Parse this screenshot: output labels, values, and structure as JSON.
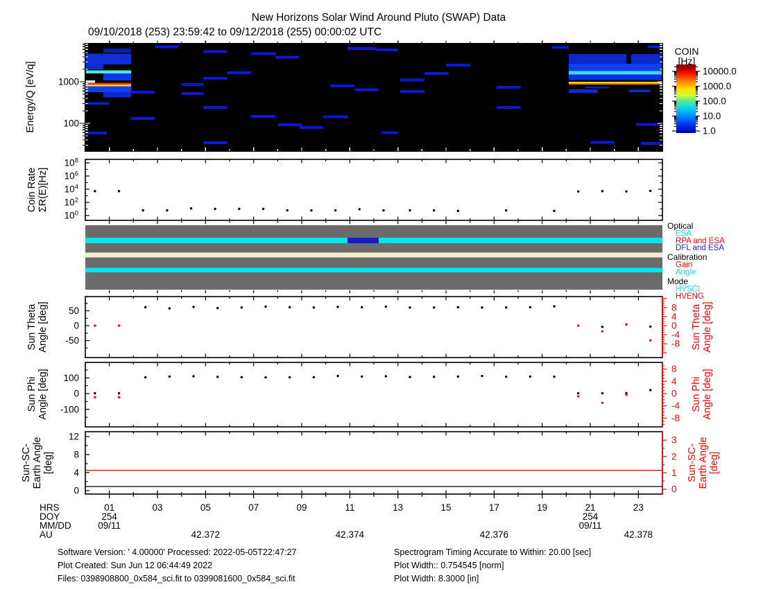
{
  "title": "New Horizons Solar Wind Around Pluto (SWAP) Data",
  "subtitle": "09/10/2018 (253) 23:59:42 to 09/12/2018 (255) 00:00:02 UTC",
  "labels": {
    "energy_ylabel": "Energy/Q [eV/q]",
    "coin_ylabel": [
      "Coin Rate",
      "ΣR(E)[Hz]"
    ],
    "theta_ylabel": [
      "Sun Theta",
      "Angle [deg]"
    ],
    "phi_ylabel": [
      "Sun Phi",
      "Angle [deg]"
    ],
    "earth_ylabel": [
      "Sun-SC-",
      "Earth Angle",
      "[deg]"
    ],
    "colorbar_title": [
      "COIN",
      "[Hz]"
    ]
  },
  "colors": {
    "axis_black": "#000000",
    "axis_red": "#ff0000",
    "status_gray": "#6b6b6b",
    "status_cyan": "#00e5ee",
    "status_cream": "#f2efc9",
    "status_blue": "#1818cc",
    "spectro_background": "#000000",
    "segment_blue": "#0a16d8"
  },
  "chart_data": [
    {
      "id": "energy_spectrogram",
      "type": "heatmap",
      "ylabel": "Energy/Q [eV/q]",
      "x_range_hours": [
        0,
        24
      ],
      "y_range_evq": [
        21,
        8300
      ],
      "y_scale": "log",
      "y_ticks_labeled": [
        1000,
        100
      ],
      "background": "#000000",
      "colorbar": {
        "title": "COIN",
        "units": "[Hz]",
        "scale": "log",
        "tick_values": [
          10000,
          1000,
          100,
          10,
          1
        ],
        "tick_labels": [
          "10000.0",
          "1000.0",
          "100.0",
          "10.0",
          "1.0"
        ],
        "gradient_stops": [
          [
            0,
            "#7d0000"
          ],
          [
            0.08,
            "#cc0000"
          ],
          [
            0.17,
            "#ff3300"
          ],
          [
            0.27,
            "#ff9900"
          ],
          [
            0.36,
            "#ffe000"
          ],
          [
            0.45,
            "#ccff33"
          ],
          [
            0.52,
            "#66ee88"
          ],
          [
            0.6,
            "#22ddcc"
          ],
          [
            0.68,
            "#00bbff"
          ],
          [
            0.78,
            "#0077ff"
          ],
          [
            0.88,
            "#0033ee"
          ],
          [
            1,
            "#0000aa"
          ]
        ]
      },
      "burst_bands": [
        [
          0.0,
          1.9,
          2600,
          4700,
          "#0f2fd4"
        ],
        [
          0.75,
          1.9,
          5000,
          6300,
          "#0a1fa8"
        ],
        [
          0.0,
          0.75,
          2000,
          2600,
          "#0c2cd8"
        ],
        [
          0.0,
          1.9,
          1600,
          1900,
          "#49e8e0"
        ],
        [
          0.75,
          1.9,
          1080,
          1600,
          "#0d36e8"
        ],
        [
          0.0,
          0.4,
          950,
          1080,
          "#cfeeee"
        ],
        [
          0.0,
          1.9,
          880,
          950,
          "#e03010"
        ],
        [
          0.0,
          1.9,
          830,
          880,
          "#ff9100"
        ],
        [
          0.0,
          1.9,
          780,
          830,
          "#ffe93c"
        ],
        [
          0.0,
          1.9,
          560,
          780,
          "#1240f0"
        ],
        [
          0.75,
          1.9,
          420,
          560,
          "#0a2ad0"
        ],
        [
          0.0,
          1.0,
          280,
          320,
          "#0a22cc"
        ],
        [
          20.1,
          24,
          1500,
          1800,
          "#40d8ec"
        ],
        [
          20.1,
          24,
          1800,
          2700,
          "#1040ee"
        ],
        [
          20.1,
          22.5,
          2700,
          4600,
          "#0a28cc"
        ],
        [
          22.7,
          24,
          2700,
          4600,
          "#0a28cc"
        ],
        [
          20.1,
          24,
          1100,
          1500,
          "#0a31e0"
        ],
        [
          20.1,
          24,
          930,
          1000,
          "#ffd800"
        ],
        [
          20.1,
          24,
          860,
          930,
          "#ff7d00"
        ],
        [
          20.1,
          21.3,
          540,
          650,
          "#0a2cd8"
        ],
        [
          22.6,
          23.5,
          560,
          640,
          "#0a2cd8"
        ],
        [
          20.8,
          21.8,
          700,
          760,
          "#0a20b0"
        ]
      ],
      "segments": [
        [
          2.9,
          3.9,
          7000
        ],
        [
          4.9,
          5.9,
          5300
        ],
        [
          6.9,
          7.9,
          4700
        ],
        [
          7.9,
          8.9,
          3900
        ],
        [
          10.9,
          12.1,
          6300
        ],
        [
          12.1,
          13.0,
          5800
        ],
        [
          19.4,
          20.1,
          6700
        ],
        [
          5.9,
          6.9,
          1650
        ],
        [
          4.9,
          5.9,
          1200
        ],
        [
          4.0,
          4.9,
          860
        ],
        [
          4.0,
          4.9,
          520
        ],
        [
          1.9,
          2.9,
          560
        ],
        [
          13.1,
          14.1,
          1100
        ],
        [
          13.1,
          14.1,
          580
        ],
        [
          14.1,
          15.1,
          1600
        ],
        [
          15.0,
          16.0,
          2500
        ],
        [
          17.1,
          18.1,
          730
        ],
        [
          17.1,
          18.1,
          240
        ],
        [
          4.9,
          5.9,
          240
        ],
        [
          6.9,
          7.9,
          147
        ],
        [
          8.0,
          9.0,
          92
        ],
        [
          8.9,
          9.9,
          80
        ],
        [
          12.3,
          13.0,
          60
        ],
        [
          4.9,
          5.9,
          34
        ],
        [
          1.9,
          2.9,
          130
        ],
        [
          9.9,
          10.9,
          145
        ],
        [
          10.2,
          11.2,
          800
        ],
        [
          11.2,
          12.2,
          640
        ],
        [
          22.9,
          23.9,
          95
        ],
        [
          21.0,
          22.0,
          35
        ],
        [
          23.1,
          24,
          33
        ],
        [
          23.4,
          24,
          7000
        ],
        [
          0,
          0.9,
          58
        ]
      ]
    },
    {
      "id": "coin_rate",
      "type": "scatter",
      "ylabel": "Coin Rate ΣR(E)[Hz]",
      "y_scale": "log",
      "y_tick_exponents": [
        8,
        6,
        4,
        2,
        0
      ],
      "points": [
        [
          0.4,
          5000
        ],
        [
          1.4,
          5000
        ],
        [
          2.4,
          6
        ],
        [
          3.4,
          6
        ],
        [
          4.4,
          12
        ],
        [
          5.4,
          10
        ],
        [
          6.4,
          10
        ],
        [
          7.4,
          10
        ],
        [
          8.4,
          6
        ],
        [
          9.4,
          6
        ],
        [
          10.4,
          6
        ],
        [
          11.4,
          9
        ],
        [
          12.4,
          6
        ],
        [
          13.5,
          6
        ],
        [
          14.5,
          6
        ],
        [
          15.5,
          5
        ],
        [
          17.5,
          6
        ],
        [
          19.5,
          5
        ],
        [
          20.5,
          4500
        ],
        [
          21.5,
          5000
        ],
        [
          22.5,
          4500
        ],
        [
          23.5,
          5500
        ]
      ]
    },
    {
      "id": "instrument_status",
      "type": "status-bars",
      "background": "#6b6b6b",
      "stripes": [
        {
          "y0": 0.1935,
          "y1": 0.2796,
          "color": "#00e5ee"
        },
        {
          "y0": 0.4247,
          "y1": 0.5,
          "color": "#f2efc9"
        },
        {
          "y0": 0.6613,
          "y1": 0.7312,
          "color": "#00e5ee"
        }
      ],
      "overlays": [
        {
          "stripe": 0,
          "x0": 10.9,
          "x1": 12.2,
          "color": "#1818cc"
        }
      ]
    },
    {
      "id": "sun_theta",
      "type": "scatter",
      "ylabel": "Sun Theta Angle [deg]",
      "right_ylabel": "Sun Theta Angle [deg]",
      "left_ticks": [
        50,
        0,
        -50
      ],
      "right_ticks": [
        8,
        4,
        0,
        -4,
        -8
      ],
      "black_points": [
        [
          2.5,
          62
        ],
        [
          3.5,
          58
        ],
        [
          4.5,
          63
        ],
        [
          5.5,
          59
        ],
        [
          6.5,
          61
        ],
        [
          7.5,
          64
        ],
        [
          8.5,
          62
        ],
        [
          9.5,
          61
        ],
        [
          10.5,
          63
        ],
        [
          11.5,
          62
        ],
        [
          12.5,
          64
        ],
        [
          13.5,
          61
        ],
        [
          14.5,
          61
        ],
        [
          15.5,
          62
        ],
        [
          16.5,
          61
        ],
        [
          17.5,
          61
        ],
        [
          18.5,
          62
        ],
        [
          19.5,
          65
        ],
        [
          21.5,
          -4
        ],
        [
          22.5,
          4
        ],
        [
          23.5,
          -3
        ]
      ],
      "red_points_right_axis": [
        [
          0.4,
          0
        ],
        [
          1.4,
          0
        ],
        [
          20.5,
          0
        ],
        [
          21.5,
          -2.5
        ],
        [
          22.5,
          0.6
        ],
        [
          23.5,
          -6.5
        ]
      ]
    },
    {
      "id": "sun_phi",
      "type": "scatter",
      "ylabel": "Sun Phi Angle [deg]",
      "right_ylabel": "Sun Phi Angle [deg]",
      "left_ticks": [
        100,
        0,
        -100
      ],
      "right_ticks": [
        8,
        4,
        0,
        -4,
        -8
      ],
      "black_points": [
        [
          0.4,
          2
        ],
        [
          1.4,
          2
        ],
        [
          2.5,
          103
        ],
        [
          3.5,
          108
        ],
        [
          4.5,
          110
        ],
        [
          5.5,
          106
        ],
        [
          6.5,
          104
        ],
        [
          7.5,
          103
        ],
        [
          8.5,
          103
        ],
        [
          9.5,
          104
        ],
        [
          10.5,
          112
        ],
        [
          11.5,
          108
        ],
        [
          12.5,
          110
        ],
        [
          13.5,
          105
        ],
        [
          14.5,
          106
        ],
        [
          15.5,
          108
        ],
        [
          16.5,
          112
        ],
        [
          17.5,
          107
        ],
        [
          18.5,
          108
        ],
        [
          19.5,
          107
        ],
        [
          20.5,
          2
        ],
        [
          21.5,
          2
        ],
        [
          22.5,
          3
        ],
        [
          23.5,
          22
        ]
      ],
      "red_points_right_axis": [
        [
          0.4,
          -1.2
        ],
        [
          1.4,
          -1.2
        ],
        [
          20.5,
          -0.9
        ],
        [
          21.5,
          -3
        ],
        [
          22.5,
          -0.4
        ]
      ]
    },
    {
      "id": "sun_sc_earth",
      "type": "line",
      "ylabel": "Sun-SC-Earth Angle [deg]",
      "right_ylabel": "Sun-SC-Earth Angle [deg]",
      "left_ticks": [
        12,
        8,
        4,
        0
      ],
      "right_ticks": [
        3,
        2,
        1,
        0
      ],
      "red_line_value_right_axis": 1.15,
      "black_line_value_left_axis": 0.9
    }
  ],
  "time_axis": {
    "rows": [
      {
        "label": "HRS",
        "ticks": [
          {
            "hour": 1,
            "text": "01"
          },
          {
            "hour": 3,
            "text": "03"
          },
          {
            "hour": 5,
            "text": "05"
          },
          {
            "hour": 7,
            "text": "07"
          },
          {
            "hour": 9,
            "text": "09"
          },
          {
            "hour": 11,
            "text": "11"
          },
          {
            "hour": 13,
            "text": "13"
          },
          {
            "hour": 15,
            "text": "15"
          },
          {
            "hour": 17,
            "text": "17"
          },
          {
            "hour": 19,
            "text": "19"
          },
          {
            "hour": 21,
            "text": "21"
          },
          {
            "hour": 23,
            "text": "23"
          }
        ]
      },
      {
        "label": "DOY",
        "ticks": [
          {
            "hour": 1,
            "text": "254"
          },
          {
            "hour": 21,
            "text": "254"
          }
        ]
      },
      {
        "label": "MM/DD",
        "ticks": [
          {
            "hour": 1,
            "text": "09/11"
          },
          {
            "hour": 21,
            "text": "09/11"
          }
        ]
      },
      {
        "label": "AU",
        "ticks": [
          {
            "hour": 5,
            "text": "42.372"
          },
          {
            "hour": 11,
            "text": "42.374"
          },
          {
            "hour": 17,
            "text": "42.376"
          },
          {
            "hour": 23,
            "text": "42.378"
          }
        ]
      }
    ]
  },
  "status_legend": {
    "sections": [
      {
        "label": "Optical",
        "color": "#000000",
        "entries": [
          {
            "label": "ESA",
            "color": "#00e5ee"
          },
          {
            "label": "RPA and ESA",
            "color": "#ff0000"
          },
          {
            "label": "DFL and ESA",
            "color": "#2222ee"
          }
        ]
      },
      {
        "label": "Calibration",
        "color": "#000000",
        "entries": [
          {
            "label": "Gain",
            "color": "#ff0000"
          },
          {
            "label": "Angle",
            "color": "#00e5ee"
          }
        ]
      },
      {
        "label": "Mode",
        "color": "#000000",
        "entries": [
          {
            "label": "HVSCI",
            "color": "#00e5ee"
          },
          {
            "label": "HVENG",
            "color": "#ff0000"
          }
        ]
      }
    ]
  },
  "footer": {
    "left_lines": [
      "Software Version:  ' 4.00000'  Processed: 2022-05-05T22:47:27",
      "Plot Created: Sun Jun 12 06:44:49 2022",
      "Files: 0398908800_0x584_sci.fit to 0399081600_0x584_sci.fit"
    ],
    "right_lines": [
      "Spectrogram Timing Accurate to Within: 20.00 [sec]",
      "Plot Width:: 0.754545 [norm]",
      "Plot Width: 8.3000 [in]"
    ]
  }
}
